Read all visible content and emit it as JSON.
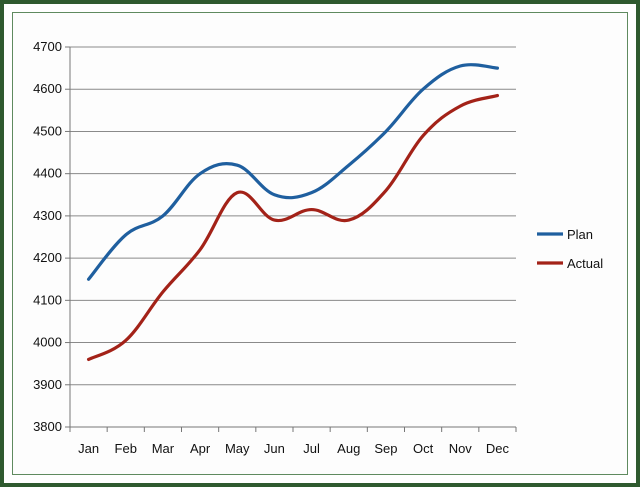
{
  "chart_data": {
    "type": "line",
    "categories": [
      "Jan",
      "Feb",
      "Mar",
      "Apr",
      "May",
      "Jun",
      "Jul",
      "Aug",
      "Sep",
      "Oct",
      "Nov",
      "Dec"
    ],
    "series": [
      {
        "name": "Plan",
        "color": "#1f5f9f",
        "values": [
          4150,
          4255,
          4300,
          4400,
          4420,
          4350,
          4355,
          4420,
          4500,
          4600,
          4655,
          4650
        ]
      },
      {
        "name": "Actual",
        "color": "#a32218",
        "values": [
          3960,
          4005,
          4120,
          4220,
          4355,
          4290,
          4315,
          4290,
          4360,
          4490,
          4560,
          4585
        ]
      }
    ],
    "ylim": [
      3800,
      4700
    ],
    "yticks": [
      "3800",
      "3900",
      "4000",
      "4100",
      "4200",
      "4300",
      "4400",
      "4500",
      "4600",
      "4700"
    ],
    "grid": true,
    "legend_position": "right",
    "title": "",
    "xlabel": "",
    "ylabel": ""
  }
}
